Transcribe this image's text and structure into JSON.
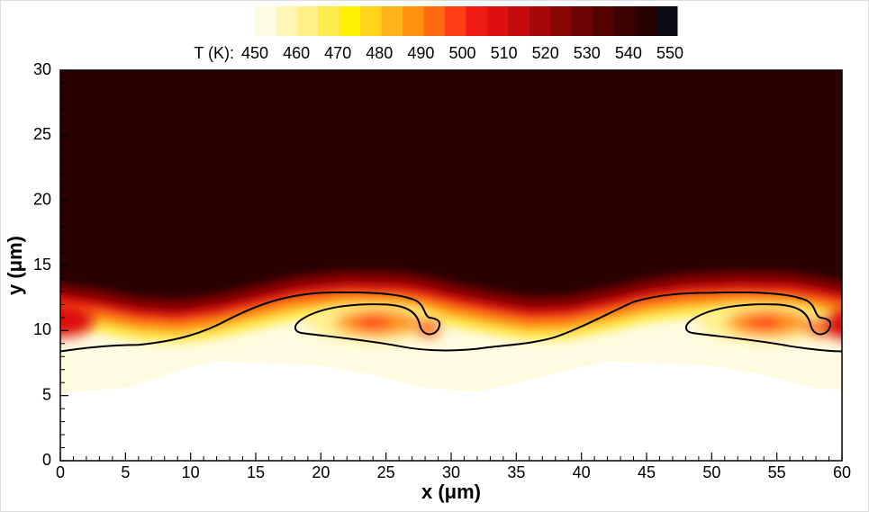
{
  "chart_data": {
    "type": "contour",
    "xlabel": "x (μm)",
    "ylabel": "y (μm)",
    "xlim": [
      0,
      60
    ],
    "ylim": [
      0,
      30
    ],
    "xticks": [
      0,
      5,
      10,
      15,
      20,
      25,
      30,
      35,
      40,
      45,
      50,
      55,
      60
    ],
    "yticks": [
      0,
      5,
      10,
      15,
      20,
      25,
      30
    ],
    "colorbar": {
      "title": "T (K):",
      "clim": [
        450,
        550
      ],
      "ticks": [
        450,
        460,
        470,
        480,
        490,
        500,
        510,
        520,
        530,
        540,
        550
      ],
      "colors": [
        "#fffbe0",
        "#fff6b8",
        "#fff08a",
        "#ffea50",
        "#fff000",
        "#ffd21c",
        "#ffb21a",
        "#ff9010",
        "#ff6a10",
        "#ff3c14",
        "#ee1a14",
        "#dd1010",
        "#c40c0c",
        "#a50808",
        "#880606",
        "#6c0404",
        "#540303",
        "#3e0202",
        "#2a0101",
        "#0a0a14"
      ]
    }
  }
}
